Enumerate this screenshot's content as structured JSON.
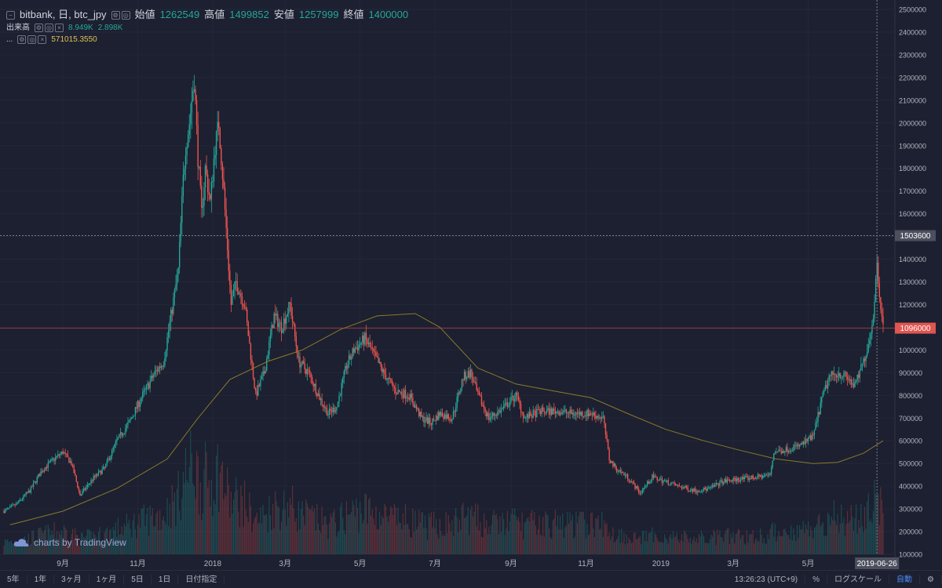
{
  "header": {
    "symbol": "bitbank, 日, btc_jpy",
    "open_label": "始値",
    "open_value": "1262549",
    "high_label": "高値",
    "high_value": "1499852",
    "low_label": "安値",
    "low_value": "1257999",
    "close_label": "終値",
    "close_value": "1400000",
    "volume_label": "出来高",
    "volume_value1": "8.949K",
    "volume_value2": "2.898K",
    "ma_label": "...",
    "ma_value": "571015.3550"
  },
  "watermark": "charts by TradingView",
  "toolbar": {
    "ranges": [
      "5年",
      "1年",
      "3ヶ月",
      "1ヶ月",
      "5日",
      "1日",
      "日付指定"
    ],
    "time": "13:26:23 (UTC+9)",
    "percent": "%",
    "log_scale": "ログスケール",
    "auto": "自動"
  },
  "colors": {
    "background": "#1c2030",
    "up": "#26a69a",
    "down": "#ef5350",
    "ma": "#8a7a2c",
    "grid": "#262a39"
  },
  "chart_data": {
    "type": "candlestick",
    "title": "bitbank, 日, btc_jpy",
    "x_ticks": [
      "9月",
      "11月",
      "2018",
      "3月",
      "5月",
      "7月",
      "9月",
      "11月",
      "2019",
      "3月",
      "5月"
    ],
    "crosshair_date": "2019-06-26",
    "y_ticks": [
      2500000,
      2400000,
      2300000,
      2200000,
      2100000,
      2000000,
      1900000,
      1800000,
      1700000,
      1600000,
      1500000,
      1400000,
      1300000,
      1200000,
      1100000,
      1000000,
      900000,
      800000,
      700000,
      600000,
      500000,
      400000,
      300000,
      200000,
      100000
    ],
    "ylim": [
      100000,
      2500000
    ],
    "crosshair_price": "1503600",
    "last_price": "1096000",
    "price_path": [
      [
        "2017-07-15",
        290000
      ],
      [
        "2017-07-25",
        320000
      ],
      [
        "2017-08-05",
        380000
      ],
      [
        "2017-08-15",
        470000
      ],
      [
        "2017-08-25",
        520000
      ],
      [
        "2017-09-01",
        550000
      ],
      [
        "2017-09-08",
        500000
      ],
      [
        "2017-09-15",
        360000
      ],
      [
        "2017-09-25",
        430000
      ],
      [
        "2017-10-05",
        480000
      ],
      [
        "2017-10-15",
        600000
      ],
      [
        "2017-10-25",
        680000
      ],
      [
        "2017-11-05",
        800000
      ],
      [
        "2017-11-15",
        900000
      ],
      [
        "2017-11-22",
        950000
      ],
      [
        "2017-11-28",
        1150000
      ],
      [
        "2017-12-04",
        1350000
      ],
      [
        "2017-12-08",
        1750000
      ],
      [
        "2017-12-10",
        1900000
      ],
      [
        "2017-12-13",
        2000000
      ],
      [
        "2017-12-17",
        2200000
      ],
      [
        "2017-12-20",
        1850000
      ],
      [
        "2017-12-23",
        1600000
      ],
      [
        "2017-12-26",
        1800000
      ],
      [
        "2017-12-30",
        1650000
      ],
      [
        "2018-01-03",
        1900000
      ],
      [
        "2018-01-06",
        2000000
      ],
      [
        "2018-01-10",
        1700000
      ],
      [
        "2018-01-16",
        1200000
      ],
      [
        "2018-01-20",
        1300000
      ],
      [
        "2018-01-27",
        1200000
      ],
      [
        "2018-02-05",
        800000
      ],
      [
        "2018-02-12",
        900000
      ],
      [
        "2018-02-20",
        1150000
      ],
      [
        "2018-02-26",
        1100000
      ],
      [
        "2018-03-05",
        1200000
      ],
      [
        "2018-03-12",
        950000
      ],
      [
        "2018-03-20",
        900000
      ],
      [
        "2018-03-30",
        780000
      ],
      [
        "2018-04-05",
        720000
      ],
      [
        "2018-04-12",
        750000
      ],
      [
        "2018-04-20",
        930000
      ],
      [
        "2018-04-26",
        1000000
      ],
      [
        "2018-05-05",
        1050000
      ],
      [
        "2018-05-10",
        1000000
      ],
      [
        "2018-05-20",
        900000
      ],
      [
        "2018-05-30",
        820000
      ],
      [
        "2018-06-10",
        800000
      ],
      [
        "2018-06-20",
        700000
      ],
      [
        "2018-06-28",
        680000
      ],
      [
        "2018-07-05",
        720000
      ],
      [
        "2018-07-15",
        700000
      ],
      [
        "2018-07-24",
        880000
      ],
      [
        "2018-07-30",
        900000
      ],
      [
        "2018-08-05",
        800000
      ],
      [
        "2018-08-14",
        700000
      ],
      [
        "2018-08-25",
        740000
      ],
      [
        "2018-09-05",
        800000
      ],
      [
        "2018-09-12",
        700000
      ],
      [
        "2018-09-25",
        730000
      ],
      [
        "2018-10-10",
        730000
      ],
      [
        "2018-10-20",
        720000
      ],
      [
        "2018-11-05",
        720000
      ],
      [
        "2018-11-15",
        700000
      ],
      [
        "2018-11-20",
        520000
      ],
      [
        "2018-11-25",
        480000
      ],
      [
        "2018-12-05",
        440000
      ],
      [
        "2018-12-15",
        370000
      ],
      [
        "2018-12-25",
        440000
      ],
      [
        "2019-01-05",
        420000
      ],
      [
        "2019-01-15",
        400000
      ],
      [
        "2019-01-30",
        380000
      ],
      [
        "2019-02-10",
        390000
      ],
      [
        "2019-02-20",
        420000
      ],
      [
        "2019-03-05",
        430000
      ],
      [
        "2019-03-20",
        440000
      ],
      [
        "2019-03-31",
        450000
      ],
      [
        "2019-04-03",
        550000
      ],
      [
        "2019-04-12",
        560000
      ],
      [
        "2019-04-25",
        580000
      ],
      [
        "2019-05-05",
        620000
      ],
      [
        "2019-05-12",
        780000
      ],
      [
        "2019-05-18",
        880000
      ],
      [
        "2019-05-25",
        900000
      ],
      [
        "2019-06-01",
        880000
      ],
      [
        "2019-06-08",
        840000
      ],
      [
        "2019-06-15",
        950000
      ],
      [
        "2019-06-20",
        1050000
      ],
      [
        "2019-06-24",
        1200000
      ],
      [
        "2019-06-26",
        1400000
      ],
      [
        "2019-06-28",
        1250000
      ],
      [
        "2019-07-01",
        1100000
      ]
    ],
    "ma_path": [
      [
        "2017-07-20",
        230000
      ],
      [
        "2017-09-01",
        290000
      ],
      [
        "2017-10-15",
        390000
      ],
      [
        "2017-11-25",
        520000
      ],
      [
        "2017-12-20",
        700000
      ],
      [
        "2018-01-15",
        870000
      ],
      [
        "2018-02-15",
        950000
      ],
      [
        "2018-03-15",
        1000000
      ],
      [
        "2018-04-15",
        1090000
      ],
      [
        "2018-05-15",
        1150000
      ],
      [
        "2018-06-15",
        1160000
      ],
      [
        "2018-07-05",
        1100000
      ],
      [
        "2018-08-05",
        920000
      ],
      [
        "2018-09-05",
        850000
      ],
      [
        "2018-10-05",
        820000
      ],
      [
        "2018-11-05",
        790000
      ],
      [
        "2018-12-05",
        720000
      ],
      [
        "2019-01-05",
        650000
      ],
      [
        "2019-02-05",
        600000
      ],
      [
        "2019-03-05",
        560000
      ],
      [
        "2019-04-05",
        520000
      ],
      [
        "2019-05-05",
        500000
      ],
      [
        "2019-05-25",
        505000
      ],
      [
        "2019-06-15",
        545000
      ],
      [
        "2019-07-01",
        600000
      ]
    ]
  }
}
